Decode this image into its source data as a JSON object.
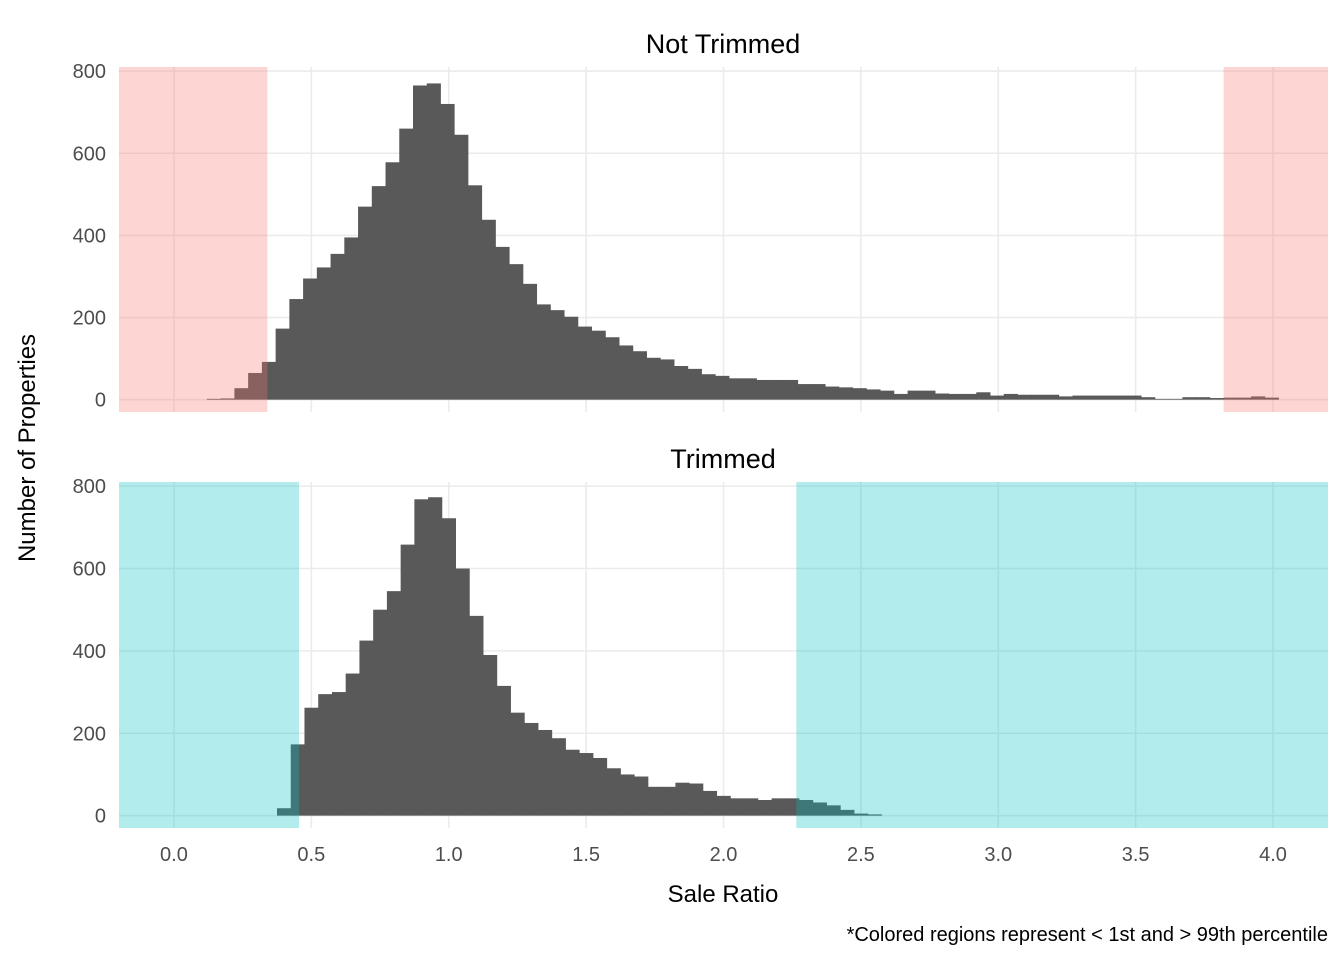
{
  "figure": {
    "xlabel": "Sale Ratio",
    "ylabel": "Number of Properties",
    "caption": "*Colored regions represent < 1st and > 99th percentile"
  },
  "colors": {
    "bars": "#595959",
    "not_trimmed_region": "#F8766D",
    "trimmed_region": "#00BFC4",
    "grid": "#ebebeb",
    "tick_text": "#4d4d4d"
  },
  "chart_data": [
    {
      "type": "bar",
      "panel": "top",
      "title": "Not Trimmed",
      "xlim": [
        -0.2,
        4.2
      ],
      "ylim": [
        -30,
        810
      ],
      "x_ticks": [
        "0.0",
        "0.5",
        "1.0",
        "1.5",
        "2.0",
        "2.5",
        "3.0",
        "3.5",
        "4.0"
      ],
      "y_ticks": [
        "0",
        "200",
        "400",
        "600",
        "800"
      ],
      "bin_width": 0.05,
      "bin_start": 0.12,
      "values": [
        2,
        3,
        28,
        65,
        92,
        173,
        245,
        295,
        322,
        355,
        395,
        470,
        520,
        578,
        660,
        765,
        770,
        720,
        645,
        522,
        438,
        372,
        330,
        282,
        232,
        218,
        202,
        178,
        168,
        152,
        132,
        118,
        102,
        98,
        82,
        75,
        62,
        58,
        52,
        52,
        48,
        48,
        48,
        38,
        38,
        32,
        30,
        28,
        25,
        22,
        14,
        22,
        22,
        15,
        14,
        14,
        18,
        10,
        14,
        12,
        12,
        12,
        8,
        10,
        10,
        10,
        10,
        10,
        6,
        2,
        2,
        6,
        6,
        4,
        5,
        5,
        8,
        5
      ],
      "shaded_regions": [
        {
          "label": "< 1st percentile",
          "from": -0.2,
          "to": 0.34
        },
        {
          "label": "> 99th percentile",
          "from": 3.82,
          "to": 4.2
        }
      ]
    },
    {
      "type": "bar",
      "panel": "bottom",
      "title": "Trimmed",
      "xlim": [
        -0.2,
        4.2
      ],
      "ylim": [
        -30,
        810
      ],
      "x_ticks": [
        "0.0",
        "0.5",
        "1.0",
        "1.5",
        "2.0",
        "2.5",
        "3.0",
        "3.5",
        "4.0"
      ],
      "y_ticks": [
        "0",
        "200",
        "400",
        "600",
        "800"
      ],
      "bin_width": 0.05,
      "bin_start": 0.375,
      "values": [
        18,
        173,
        262,
        295,
        300,
        345,
        425,
        500,
        545,
        658,
        768,
        773,
        722,
        600,
        485,
        390,
        315,
        250,
        225,
        208,
        188,
        160,
        152,
        140,
        115,
        100,
        95,
        70,
        70,
        80,
        78,
        60,
        48,
        42,
        42,
        38,
        42,
        42,
        38,
        32,
        25,
        14,
        5,
        3
      ],
      "shaded_regions": [
        {
          "label": "< 1st percentile",
          "from": -0.2,
          "to": 0.455
        },
        {
          "label": "> 99th percentile",
          "from": 2.265,
          "to": 4.2
        }
      ]
    }
  ]
}
